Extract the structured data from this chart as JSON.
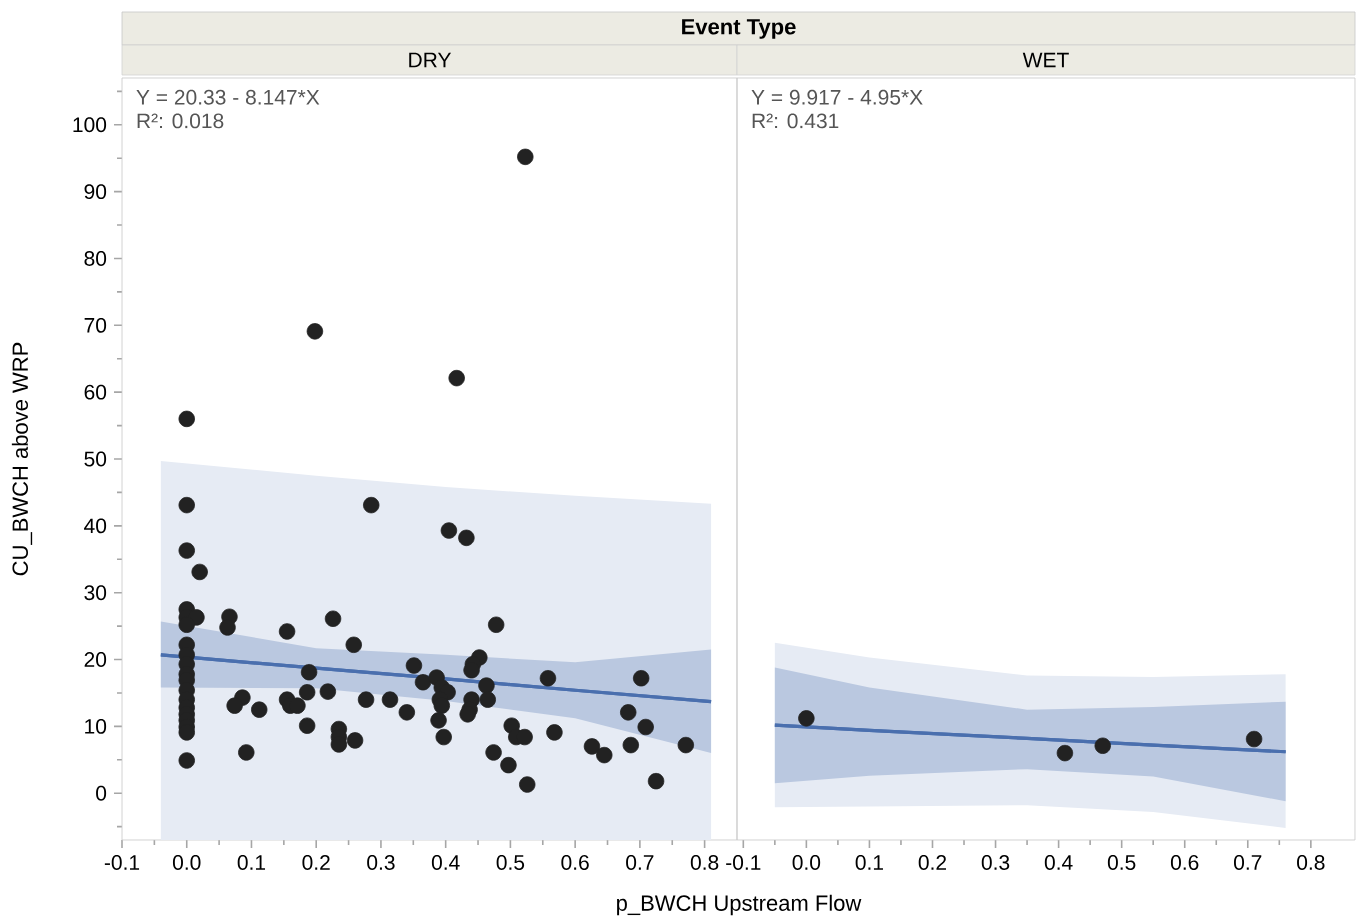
{
  "chart_data": [
    {
      "type": "scatter",
      "title": "Event Type",
      "subtitle": "DRY",
      "xlabel": "p_BWCH Upstream Flow",
      "ylabel": "CU_BWCH above WRP",
      "annotations": [
        "Y = 20.33 - 8.147*X",
        "R²: 0.018"
      ],
      "xlim": [
        -0.1,
        0.85
      ],
      "ylim": [
        -7,
        107
      ],
      "xticks": [
        {
          "value": -0.1,
          "label": "-0.1"
        },
        {
          "value": 0,
          "label": "0.0"
        },
        0.1,
        0.2,
        0.3,
        0.4,
        0.5,
        0.6,
        0.7,
        0.8,
        {
          "value": -0.05,
          "label": null
        },
        {
          "value": 0.05,
          "label": null
        },
        {
          "value": 0.15,
          "label": null
        },
        {
          "value": 0.25,
          "label": null
        },
        {
          "value": 0.35,
          "label": null
        },
        {
          "value": 0.45,
          "label": null
        },
        {
          "value": 0.55,
          "label": null
        },
        {
          "value": 0.65,
          "label": null
        },
        {
          "value": 0.75,
          "label": null
        }
      ],
      "yticks": [
        0,
        10,
        20,
        30,
        40,
        50,
        60,
        70,
        80,
        90,
        100,
        {
          "value": -5,
          "label": null
        },
        {
          "value": 5,
          "label": null
        },
        {
          "value": 15,
          "label": null
        },
        {
          "value": 25,
          "label": null
        },
        {
          "value": 35,
          "label": null
        },
        {
          "value": 45,
          "label": null
        },
        {
          "value": 55,
          "label": null
        },
        {
          "value": 65,
          "label": null
        },
        {
          "value": 75,
          "label": null
        },
        {
          "value": 85,
          "label": null
        },
        {
          "value": 95,
          "label": null
        },
        {
          "value": 105,
          "label": null
        }
      ],
      "series": [
        {
          "type": "line",
          "color": "#4a6fae",
          "x": [
            -0.04,
            0.2,
            0.4,
            0.6,
            0.81
          ],
          "values": [
            20.7,
            18.7,
            17.1,
            15.4,
            13.7
          ],
          "upper": [
            49.7,
            47.5,
            45.8,
            44.5,
            43.3
          ],
          "lower": [
            -7,
            -7,
            -7,
            -7,
            -7
          ]
        },
        {
          "type": "line",
          "color": "#4a6fae",
          "x": [
            -0.04,
            0.2,
            0.4,
            0.6,
            0.81
          ],
          "values": [
            20.7,
            18.7,
            17.1,
            15.4,
            13.7
          ],
          "upper": [
            25.7,
            21.7,
            20.7,
            19.6,
            21.5
          ],
          "lower": [
            15.8,
            15.7,
            13.8,
            11.2,
            6.0
          ]
        },
        {
          "color": "#222222",
          "marker": "circle",
          "x": [
            0,
            0,
            0,
            0.02,
            0,
            0,
            0.015,
            0,
            0.066,
            0.063,
            0.155,
            0.226,
            0.285,
            0.258,
            0,
            0,
            0,
            0,
            0,
            0,
            0,
            0,
            0,
            0,
            0,
            0,
            0,
            0.086,
            0.074,
            0.112,
            0.092,
            0.155,
            0.16,
            0.171,
            0.189,
            0.186,
            0.186,
            0.218,
            0.235,
            0.235,
            0.235,
            0.26,
            0.277,
            0.314,
            0.34,
            0.351,
            0.365,
            0.405,
            0.432,
            0.478,
            0.452,
            0.442,
            0.44,
            0.386,
            0.394,
            0.403,
            0.391,
            0.394,
            0.389,
            0.397,
            0.44,
            0.437,
            0.434,
            0.463,
            0.465,
            0.558,
            0.502,
            0.509,
            0.522,
            0.568,
            0.474,
            0.497,
            0.526,
            0.626,
            0.645,
            0.702,
            0.682,
            0.709,
            0.686,
            0.725,
            0.771,
            0.523,
            0.198,
            0.417
          ],
          "values": [
            56.0,
            43.1,
            36.3,
            33.1,
            27.5,
            26.3,
            26.3,
            25.2,
            26.4,
            24.8,
            24.2,
            26.1,
            43.1,
            22.2,
            22.2,
            20.7,
            19.3,
            17.8,
            16.9,
            15.4,
            14.0,
            12.8,
            11.8,
            10.9,
            9.9,
            9.1,
            4.9,
            14.3,
            13.1,
            12.5,
            6.1,
            14.0,
            13.1,
            13.1,
            18.1,
            15.1,
            10.1,
            15.2,
            9.6,
            8.4,
            7.3,
            7.9,
            14.0,
            14.0,
            12.1,
            19.1,
            16.6,
            39.3,
            38.2,
            25.2,
            20.3,
            19.3,
            18.4,
            17.3,
            15.8,
            15.1,
            14.0,
            13.1,
            10.9,
            8.4,
            14.0,
            12.5,
            11.8,
            16.1,
            14.0,
            17.2,
            10.1,
            8.4,
            8.4,
            9.1,
            6.1,
            4.2,
            1.3,
            7.0,
            5.7,
            17.2,
            12.1,
            9.9,
            7.2,
            1.8,
            7.2,
            95.2,
            69.1,
            62.1
          ]
        }
      ]
    },
    {
      "type": "scatter",
      "subtitle": "WET",
      "tick_labels": "x",
      "annotations": [
        "Y = 9.917 - 4.95*X",
        "R²: 0.431"
      ],
      "xlim": [
        -0.11,
        0.87
      ],
      "ylim": [
        -7,
        107
      ],
      "xticks": [
        {
          "value": -0.1,
          "label": "-0.1"
        },
        {
          "value": 0,
          "label": "0.0"
        },
        0.1,
        0.2,
        0.3,
        0.4,
        0.5,
        0.6,
        0.7,
        0.8,
        {
          "value": -0.05,
          "label": null
        },
        {
          "value": 0.05,
          "label": null
        },
        {
          "value": 0.15,
          "label": null
        },
        {
          "value": 0.25,
          "label": null
        },
        {
          "value": 0.35,
          "label": null
        },
        {
          "value": 0.45,
          "label": null
        },
        {
          "value": 0.55,
          "label": null
        },
        {
          "value": 0.65,
          "label": null
        },
        {
          "value": 0.75,
          "label": null
        }
      ],
      "series": [
        {
          "type": "line",
          "color": "#4a6fae",
          "x": [
            -0.05,
            0.1,
            0.35,
            0.55,
            0.76
          ],
          "values": [
            10.2,
            9.4,
            8.2,
            7.2,
            6.2
          ],
          "upper": [
            22.5,
            20.3,
            17.6,
            17.4,
            17.8
          ],
          "lower": [
            -2.1,
            -2.0,
            -1.8,
            -2.8,
            -5.2
          ]
        },
        {
          "type": "line",
          "color": "#4a6fae",
          "x": [
            -0.05,
            0.1,
            0.35,
            0.55,
            0.76
          ],
          "values": [
            10.2,
            9.4,
            8.2,
            7.2,
            6.2
          ],
          "upper": [
            18.8,
            15.8,
            12.5,
            12.9,
            13.7
          ],
          "lower": [
            1.5,
            2.6,
            3.6,
            2.5,
            -1.2
          ]
        },
        {
          "color": "#222222",
          "marker": "circle",
          "x": [
            0.0,
            0.41,
            0.47,
            0.71
          ],
          "values": [
            11.2,
            6.0,
            7.1,
            8.1
          ]
        }
      ]
    }
  ]
}
